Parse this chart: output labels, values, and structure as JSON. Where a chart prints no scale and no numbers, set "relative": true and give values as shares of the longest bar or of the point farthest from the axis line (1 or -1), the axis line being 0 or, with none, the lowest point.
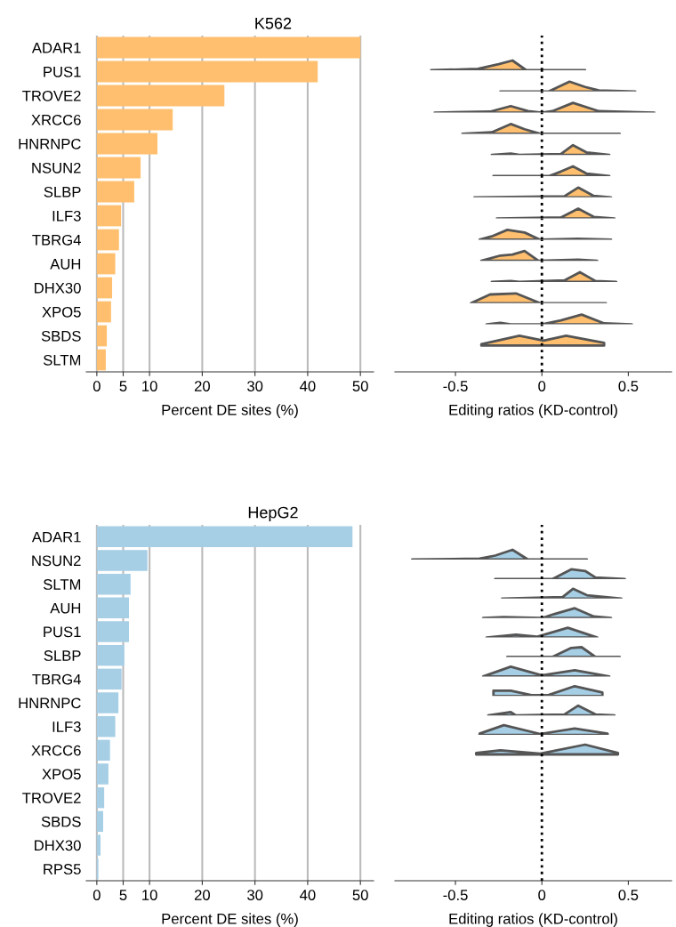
{
  "chart_data": [
    {
      "type": "bar",
      "orientation": "horizontal",
      "title": "K562",
      "xlabel": "Percent DE sites (%)",
      "color": "#ffbf6e",
      "grid": "x",
      "categories": [
        "ADAR1",
        "PUS1",
        "TROVE2",
        "XRCC6",
        "HNRNPC",
        "NSUN2",
        "SLBP",
        "ILF3",
        "TBRG4",
        "AUH",
        "DHX30",
        "XPO5",
        "SBDS",
        "SLTM"
      ],
      "values": [
        50,
        41.9,
        24.2,
        14.4,
        11.5,
        8.3,
        7.1,
        4.6,
        4.2,
        3.5,
        2.9,
        2.7,
        1.9,
        1.7
      ],
      "xlim": [
        -2,
        52.5
      ],
      "xticks": [
        0,
        5,
        10,
        20,
        30,
        40,
        50
      ]
    },
    {
      "type": "area",
      "relative": true,
      "tick_labels": false,
      "xlim": [
        -0.85,
        0.75
      ],
      "ref_lines": [
        {
          "axis": "x",
          "value": 0,
          "line_style": "dotted"
        }
      ],
      "color": "#ffbf6e",
      "x": [
        -0.64,
        -0.37,
        -0.25,
        -0.17,
        -0.09,
        0.25
      ],
      "values": [
        0,
        0.15,
        0.63,
        1,
        0,
        0
      ]
    },
    {
      "type": "area",
      "relative": true,
      "tick_labels": false,
      "xlim": [
        -0.85,
        0.75
      ],
      "ref_lines": [
        {
          "axis": "x",
          "value": 0,
          "line_style": "dotted"
        }
      ],
      "color": "#ffbf6e",
      "x": [
        -0.24,
        0.04,
        0.16,
        0.25,
        0.33,
        0.54
      ],
      "values": [
        0,
        0,
        1,
        0.46,
        0.1,
        0
      ]
    },
    {
      "type": "area",
      "relative": true,
      "tick_labels": false,
      "xlim": [
        -0.85,
        0.75
      ],
      "ref_lines": [
        {
          "axis": "x",
          "value": 0,
          "line_style": "dotted"
        }
      ],
      "color": "#ffbf6e",
      "x": [
        -0.62,
        -0.3,
        -0.18,
        -0.08,
        0,
        0.06,
        0.18,
        0.33,
        0.65
      ],
      "values": [
        0,
        0.1,
        0.67,
        0.15,
        0,
        0.15,
        1,
        0.15,
        0
      ]
    },
    {
      "type": "area",
      "relative": true,
      "tick_labels": false,
      "xlim": [
        -0.85,
        0.75
      ],
      "ref_lines": [
        {
          "axis": "x",
          "value": 0,
          "line_style": "dotted"
        }
      ],
      "color": "#ffbf6e",
      "x": [
        -0.46,
        -0.29,
        -0.18,
        -0.1,
        -0.01,
        0.45
      ],
      "values": [
        0,
        0.15,
        1,
        0.47,
        0,
        0
      ]
    },
    {
      "type": "area",
      "relative": true,
      "tick_labels": false,
      "xlim": [
        -0.85,
        0.75
      ],
      "ref_lines": [
        {
          "axis": "x",
          "value": 0,
          "line_style": "dotted"
        }
      ],
      "color": "#ffbf6e",
      "x": [
        -0.29,
        -0.18,
        -0.13,
        0.11,
        0.18,
        0.26,
        0.39
      ],
      "values": [
        0,
        0.15,
        0,
        0.1,
        1,
        0.25,
        0
      ]
    },
    {
      "type": "area",
      "relative": true,
      "tick_labels": false,
      "xlim": [
        -0.85,
        0.75
      ],
      "ref_lines": [
        {
          "axis": "x",
          "value": 0,
          "line_style": "dotted"
        }
      ],
      "color": "#ffbf6e",
      "x": [
        -0.28,
        0.04,
        0.11,
        0.18,
        0.26,
        0.39
      ],
      "values": [
        0,
        0,
        0.47,
        1,
        0.25,
        0
      ]
    },
    {
      "type": "area",
      "relative": true,
      "tick_labels": false,
      "xlim": [
        -0.85,
        0.75
      ],
      "ref_lines": [
        {
          "axis": "x",
          "value": 0,
          "line_style": "dotted"
        }
      ],
      "color": "#ffbf6e",
      "x": [
        -0.39,
        0.13,
        0.21,
        0.3,
        0.4
      ],
      "values": [
        0,
        0.1,
        1,
        0.15,
        0
      ]
    },
    {
      "type": "area",
      "relative": true,
      "tick_labels": false,
      "xlim": [
        -0.85,
        0.75
      ],
      "ref_lines": [
        {
          "axis": "x",
          "value": 0,
          "line_style": "dotted"
        }
      ],
      "color": "#ffbf6e",
      "x": [
        -0.26,
        0.11,
        0.21,
        0.3,
        0.42
      ],
      "values": [
        0,
        0.1,
        1,
        0.16,
        0
      ]
    },
    {
      "type": "area",
      "relative": true,
      "tick_labels": false,
      "xlim": [
        -0.85,
        0.75
      ],
      "ref_lines": [
        {
          "axis": "x",
          "value": 0,
          "line_style": "dotted"
        }
      ],
      "color": "#ffbf6e",
      "x": [
        -0.36,
        -0.29,
        -0.2,
        -0.1,
        -0.01,
        0.21,
        0.4
      ],
      "values": [
        0,
        0.34,
        1,
        0.73,
        0,
        0.1,
        0
      ]
    },
    {
      "type": "area",
      "relative": true,
      "tick_labels": false,
      "xlim": [
        -0.85,
        0.75
      ],
      "ref_lines": [
        {
          "axis": "x",
          "value": 0,
          "line_style": "dotted"
        }
      ],
      "color": "#ffbf6e",
      "x": [
        -0.35,
        -0.24,
        -0.17,
        -0.1,
        -0.02,
        0.21,
        0.32
      ],
      "values": [
        0,
        0.54,
        0.64,
        1,
        0,
        0.11,
        0
      ]
    },
    {
      "type": "area",
      "relative": true,
      "tick_labels": false,
      "xlim": [
        -0.85,
        0.75
      ],
      "ref_lines": [
        {
          "axis": "x",
          "value": 0,
          "line_style": "dotted"
        }
      ],
      "color": "#ffbf6e",
      "x": [
        -0.29,
        -0.18,
        -0.13,
        0.13,
        0.22,
        0.31,
        0.43
      ],
      "values": [
        0,
        0.1,
        0,
        0.16,
        1,
        0.1,
        0
      ]
    },
    {
      "type": "area",
      "relative": true,
      "tick_labels": false,
      "xlim": [
        -0.85,
        0.75
      ],
      "ref_lines": [
        {
          "axis": "x",
          "value": 0,
          "line_style": "dotted"
        }
      ],
      "color": "#ffbf6e",
      "x": [
        -0.41,
        -0.3,
        -0.15,
        -0.01,
        0.37
      ],
      "values": [
        0,
        0.89,
        1,
        0,
        0
      ]
    },
    {
      "type": "area",
      "relative": true,
      "tick_labels": false,
      "xlim": [
        -0.85,
        0.75
      ],
      "ref_lines": [
        {
          "axis": "x",
          "value": 0,
          "line_style": "dotted"
        }
      ],
      "color": "#ffbf6e",
      "x": [
        -0.32,
        -0.24,
        -0.18,
        0,
        0.11,
        0.23,
        0.36,
        0.52
      ],
      "values": [
        0,
        0.16,
        0,
        0,
        0.4,
        1,
        0.1,
        0
      ]
    },
    {
      "type": "area",
      "relative": true,
      "tick_labels": "x",
      "xlim": [
        -0.85,
        0.75
      ],
      "xticks": [
        {
          "value": -0.5,
          "label": "-0.5"
        },
        0,
        0.5
      ],
      "xlabel": "Editing ratios (KD-control)",
      "ref_lines": [
        {
          "axis": "x",
          "value": 0,
          "line_style": "dotted"
        }
      ],
      "color": "#ffbf6e",
      "x": [
        -0.35,
        -0.13,
        0.01,
        0.14,
        0.36
      ],
      "values": [
        0.13,
        1,
        0.5,
        1,
        0.27
      ]
    },
    {
      "type": "bar",
      "orientation": "horizontal",
      "title": "HepG2",
      "xlabel": "Percent DE sites (%)",
      "color": "#a6cfe6",
      "grid": "x",
      "categories": [
        "ADAR1",
        "NSUN2",
        "SLTM",
        "AUH",
        "PUS1",
        "SLBP",
        "TBRG4",
        "HNRNPC",
        "ILF3",
        "XRCC6",
        "XPO5",
        "TROVE2",
        "SBDS",
        "DHX30",
        "RPS5"
      ],
      "values": [
        48.5,
        9.6,
        6.4,
        6.1,
        6.1,
        5.2,
        4.7,
        4.1,
        3.5,
        2.5,
        2.2,
        1.4,
        1.2,
        0.7,
        0.3
      ],
      "xlim": [
        -2,
        52.5
      ],
      "xticks": [
        0,
        5,
        10,
        20,
        30,
        40,
        50
      ]
    },
    {
      "type": "area",
      "relative": true,
      "tick_labels": false,
      "xlim": [
        -0.85,
        0.75
      ],
      "ref_lines": [
        {
          "axis": "x",
          "value": 0,
          "line_style": "dotted"
        }
      ],
      "color": "#a6cfe6",
      "x": [
        -0.75,
        -0.36,
        -0.27,
        -0.17,
        -0.08,
        0.26
      ],
      "values": [
        0,
        0.1,
        0.41,
        1,
        0,
        0
      ]
    },
    {
      "type": "area",
      "relative": true,
      "tick_labels": false,
      "xlim": [
        -0.85,
        0.75
      ],
      "ref_lines": [
        {
          "axis": "x",
          "value": 0,
          "line_style": "dotted"
        }
      ],
      "color": "#a6cfe6",
      "x": [
        -0.27,
        0.06,
        0.17,
        0.25,
        0.31,
        0.48
      ],
      "values": [
        0,
        0,
        1,
        0.83,
        0.16,
        0
      ]
    },
    {
      "type": "area",
      "relative": true,
      "tick_labels": false,
      "xlim": [
        -0.85,
        0.75
      ],
      "ref_lines": [
        {
          "axis": "x",
          "value": 0,
          "line_style": "dotted"
        }
      ],
      "color": "#a6cfe6",
      "x": [
        -0.23,
        0.12,
        0.18,
        0.26,
        0.46
      ],
      "values": [
        0,
        0.16,
        1,
        0.34,
        0
      ]
    },
    {
      "type": "area",
      "relative": true,
      "tick_labels": false,
      "xlim": [
        -0.85,
        0.75
      ],
      "ref_lines": [
        {
          "axis": "x",
          "value": 0,
          "line_style": "dotted"
        }
      ],
      "color": "#a6cfe6",
      "x": [
        -0.34,
        -0.22,
        0,
        0.07,
        0.19,
        0.3,
        0.4
      ],
      "values": [
        0,
        0.1,
        0,
        0.4,
        1,
        0.16,
        0
      ]
    },
    {
      "type": "area",
      "relative": true,
      "tick_labels": false,
      "xlim": [
        -0.85,
        0.75
      ],
      "ref_lines": [
        {
          "axis": "x",
          "value": 0,
          "line_style": "dotted"
        }
      ],
      "color": "#a6cfe6",
      "x": [
        -0.32,
        -0.15,
        -0.03,
        0.04,
        0.15,
        0.32
      ],
      "values": [
        0,
        0.29,
        0.08,
        0.43,
        1,
        0
      ]
    },
    {
      "type": "area",
      "relative": true,
      "tick_labels": false,
      "xlim": [
        -0.85,
        0.75
      ],
      "ref_lines": [
        {
          "axis": "x",
          "value": 0,
          "line_style": "dotted"
        }
      ],
      "color": "#a6cfe6",
      "x": [
        -0.2,
        0.06,
        0.17,
        0.23,
        0.31,
        0.45
      ],
      "values": [
        0,
        0,
        0.93,
        1,
        0,
        0
      ]
    },
    {
      "type": "area",
      "relative": true,
      "tick_labels": false,
      "xlim": [
        -0.85,
        0.75
      ],
      "ref_lines": [
        {
          "axis": "x",
          "value": 0,
          "line_style": "dotted"
        }
      ],
      "color": "#a6cfe6",
      "x": [
        -0.34,
        -0.18,
        0,
        0.19,
        0.39
      ],
      "values": [
        0,
        1,
        0.11,
        0.64,
        0
      ]
    },
    {
      "type": "area",
      "relative": true,
      "tick_labels": false,
      "xlim": [
        -0.85,
        0.75
      ],
      "ref_lines": [
        {
          "axis": "x",
          "value": 0,
          "line_style": "dotted"
        }
      ],
      "color": "#a6cfe6",
      "x": [
        -0.28,
        -0.18,
        -0.06,
        0.04,
        0.19,
        0.35
      ],
      "values": [
        0.54,
        0.54,
        0.08,
        0.11,
        1,
        0.36
      ]
    },
    {
      "type": "area",
      "relative": true,
      "tick_labels": false,
      "xlim": [
        -0.85,
        0.75
      ],
      "ref_lines": [
        {
          "axis": "x",
          "value": 0,
          "line_style": "dotted"
        }
      ],
      "color": "#a6cfe6",
      "x": [
        -0.31,
        -0.18,
        -0.15,
        0.13,
        0.21,
        0.31,
        0.42
      ],
      "values": [
        0,
        0.34,
        0,
        0.1,
        1,
        0.1,
        0
      ]
    },
    {
      "type": "area",
      "relative": true,
      "tick_labels": false,
      "xlim": [
        -0.85,
        0.75
      ],
      "ref_lines": [
        {
          "axis": "x",
          "value": 0,
          "line_style": "dotted"
        }
      ],
      "color": "#a6cfe6",
      "x": [
        -0.36,
        -0.22,
        -0.01,
        0.19,
        0.38
      ],
      "values": [
        0.13,
        1,
        0.1,
        0.66,
        0.13
      ]
    },
    {
      "type": "area",
      "relative": true,
      "tick_labels": "x",
      "xlim": [
        -0.85,
        0.75
      ],
      "xticks": [
        {
          "value": -0.5,
          "label": "-0.5"
        },
        0,
        0.5
      ],
      "xlabel": "Editing ratios (KD-control)",
      "ref_lines": [
        {
          "axis": "x",
          "value": 0,
          "line_style": "dotted"
        }
      ],
      "color": "#a6cfe6",
      "x": [
        -0.38,
        -0.24,
        -0.01,
        0.25,
        0.44
      ],
      "values": [
        0.14,
        0.43,
        0.08,
        1,
        0.14
      ]
    }
  ]
}
